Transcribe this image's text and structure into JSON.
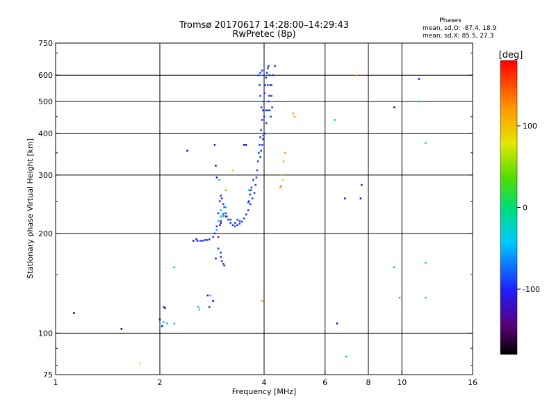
{
  "chart_data": {
    "type": "scatter",
    "title_line1": "Tromsø 20170617 14:28:00–14:29:43",
    "title_line2": "RwPretec (8p)",
    "phases": {
      "header": "Phases",
      "o_line": "mean, sd,O: -87.4, 18.9",
      "x_line": "mean, sd,X:  85.5, 27.3"
    },
    "xlabel": "Frequency [MHz]",
    "ylabel": "Stationary phase Virtual Height [km]",
    "x_scale": "log",
    "y_scale": "log",
    "xlim": [
      1,
      16
    ],
    "ylim": [
      75,
      750
    ],
    "x_ticks": [
      1,
      2,
      4,
      6,
      8,
      10,
      16
    ],
    "x_tick_labels": [
      "1",
      "2",
      "4",
      "6",
      "8",
      "10",
      "16"
    ],
    "y_ticks": [
      75,
      100,
      200,
      300,
      400,
      500,
      600,
      750
    ],
    "y_tick_labels": [
      "75",
      "100",
      "200",
      "300",
      "400",
      "500",
      "600",
      "750"
    ],
    "grid_x": [
      2,
      4,
      6,
      8,
      10
    ],
    "grid_y": [
      100,
      200,
      300,
      400,
      500,
      600
    ],
    "colorbar": {
      "label": "[deg]",
      "range": [
        -180,
        180
      ],
      "ticks": [
        100,
        0,
        -100
      ],
      "tick_labels": [
        "100",
        "0",
        "-100"
      ]
    },
    "colors": {
      "blue": "#1e3cff",
      "darkblue": "#1a10c8",
      "navy": "#23007a",
      "cyan": "#14c8e6",
      "teal": "#1496c8",
      "orange": "#ffa014",
      "gold": "#ffc814",
      "yellow": "#e6dc1e",
      "green": "#28c878",
      "purple": "#7814b4"
    },
    "series": [
      {
        "name": "O-trace",
        "color": "blue",
        "points": [
          [
            2.57,
            190
          ],
          [
            2.62,
            190
          ],
          [
            2.66,
            190
          ],
          [
            2.7,
            191
          ],
          [
            2.74,
            191
          ],
          [
            2.78,
            192
          ],
          [
            2.85,
            195
          ],
          [
            2.88,
            200
          ],
          [
            2.92,
            210
          ],
          [
            2.95,
            230
          ],
          [
            2.98,
            250
          ],
          [
            3.0,
            260
          ],
          [
            3.02,
            255
          ],
          [
            3.05,
            245
          ],
          [
            3.07,
            240
          ],
          [
            3.1,
            230
          ],
          [
            3.12,
            225
          ],
          [
            3.15,
            220
          ],
          [
            3.2,
            215
          ],
          [
            3.25,
            212
          ],
          [
            3.3,
            210
          ],
          [
            3.35,
            212
          ],
          [
            3.4,
            214
          ],
          [
            3.45,
            217
          ],
          [
            3.5,
            222
          ],
          [
            3.55,
            228
          ],
          [
            3.6,
            235
          ],
          [
            3.65,
            245
          ],
          [
            3.7,
            255
          ],
          [
            3.75,
            265
          ],
          [
            3.78,
            280
          ],
          [
            3.8,
            295
          ],
          [
            3.82,
            310
          ],
          [
            3.84,
            330
          ],
          [
            3.86,
            350
          ],
          [
            3.88,
            370
          ],
          [
            3.9,
            390
          ],
          [
            3.92,
            410
          ],
          [
            3.95,
            440
          ],
          [
            3.97,
            470
          ],
          [
            3.99,
            500
          ],
          [
            4.01,
            530
          ],
          [
            4.03,
            560
          ],
          [
            4.05,
            590
          ],
          [
            4.08,
            610
          ],
          [
            4.1,
            630
          ],
          [
            4.12,
            640
          ],
          [
            4.15,
            600
          ],
          [
            4.17,
            560
          ],
          [
            4.2,
            520
          ],
          [
            4.22,
            480
          ],
          [
            4.0,
            450
          ],
          [
            4.05,
            470
          ],
          [
            3.93,
            480
          ],
          [
            3.9,
            520
          ],
          [
            3.88,
            560
          ],
          [
            3.85,
            600
          ],
          [
            3.9,
            610
          ],
          [
            3.95,
            620
          ],
          [
            4.0,
            600
          ],
          [
            4.1,
            560
          ],
          [
            4.12,
            500
          ],
          [
            4.15,
            470
          ],
          [
            4.18,
            450
          ],
          [
            3.3,
            215
          ],
          [
            3.35,
            220
          ],
          [
            3.4,
            218
          ],
          [
            3.2,
            220
          ],
          [
            3.1,
            225
          ],
          [
            3.05,
            228
          ],
          [
            3.0,
            218
          ],
          [
            2.98,
            212
          ],
          [
            3.9,
            340
          ],
          [
            3.92,
            355
          ],
          [
            3.95,
            370
          ],
          [
            3.97,
            385
          ],
          [
            4.3,
            640
          ],
          [
            3.98,
            395
          ],
          [
            4.02,
            400
          ],
          [
            4.06,
            430
          ],
          [
            4.1,
            470
          ],
          [
            4.14,
            520
          ],
          [
            4.2,
            560
          ],
          [
            4.25,
            600
          ],
          [
            2.95,
            180
          ],
          [
            3.0,
            170
          ],
          [
            3.02,
            165
          ],
          [
            3.05,
            162
          ],
          [
            3.07,
            160
          ],
          [
            3.0,
            175
          ],
          [
            3.6,
            248
          ],
          [
            3.62,
            250
          ],
          [
            3.64,
            262
          ],
          [
            3.66,
            270
          ],
          [
            3.68,
            275
          ],
          [
            3.72,
            290
          ]
        ]
      },
      {
        "name": "scatter-cyan",
        "color": "cyan",
        "points": [
          [
            2.05,
            108
          ],
          [
            2.1,
            107
          ],
          [
            2.0,
            106
          ],
          [
            2.2,
            107
          ],
          [
            2.2,
            158
          ],
          [
            2.58,
            120
          ],
          [
            2.97,
            290
          ],
          [
            3.0,
            225
          ],
          [
            3.05,
            230
          ],
          [
            3.1,
            240
          ],
          [
            3.0,
            235
          ],
          [
            2.8,
            130
          ],
          [
            9.85,
            128
          ],
          [
            11.7,
            128
          ],
          [
            11.7,
            163
          ],
          [
            11.7,
            375
          ],
          [
            11.2,
            500
          ],
          [
            6.9,
            85
          ],
          [
            6.4,
            440
          ],
          [
            2.92,
            205
          ],
          [
            2.95,
            218
          ],
          [
            3.62,
            270
          ],
          [
            2.6,
            118
          ]
        ]
      },
      {
        "name": "scatter-darkblue",
        "color": "darkblue",
        "points": [
          [
            1.13,
            115
          ],
          [
            1.55,
            103
          ],
          [
            2.0,
            110
          ],
          [
            2.03,
            105
          ],
          [
            2.07,
            119
          ],
          [
            2.4,
            355
          ],
          [
            2.88,
            370
          ],
          [
            2.9,
            320
          ],
          [
            2.92,
            295
          ],
          [
            2.85,
            125
          ],
          [
            2.9,
            168
          ],
          [
            3.5,
            370
          ],
          [
            3.55,
            370
          ],
          [
            6.5,
            107
          ],
          [
            6.85,
            255
          ],
          [
            7.65,
            280
          ],
          [
            7.6,
            255
          ],
          [
            9.5,
            480
          ],
          [
            11.2,
            585
          ],
          [
            2.5,
            190
          ],
          [
            2.55,
            192
          ],
          [
            2.75,
            130
          ]
        ]
      },
      {
        "name": "scatter-orange",
        "color": "orange",
        "points": [
          [
            4.45,
            275
          ],
          [
            4.48,
            278
          ],
          [
            4.5,
            300
          ],
          [
            4.55,
            330
          ],
          [
            4.6,
            350
          ],
          [
            4.85,
            460
          ],
          [
            4.9,
            450
          ],
          [
            3.95,
            125
          ],
          [
            3.1,
            270
          ],
          [
            7.4,
            600
          ]
        ]
      },
      {
        "name": "scatter-yellow",
        "color": "yellow",
        "points": [
          [
            1.75,
            81
          ],
          [
            3.25,
            310
          ],
          [
            4.52,
            290
          ]
        ]
      },
      {
        "name": "scatter-green",
        "color": "green",
        "points": [
          [
            9.5,
            158
          ],
          [
            3.05,
            225
          ]
        ]
      },
      {
        "name": "scatter-purple",
        "color": "purple",
        "points": [
          [
            2.05,
            120
          ],
          [
            2.95,
            195
          ],
          [
            3.0,
            215
          ],
          [
            2.78,
            120
          ]
        ]
      }
    ]
  }
}
